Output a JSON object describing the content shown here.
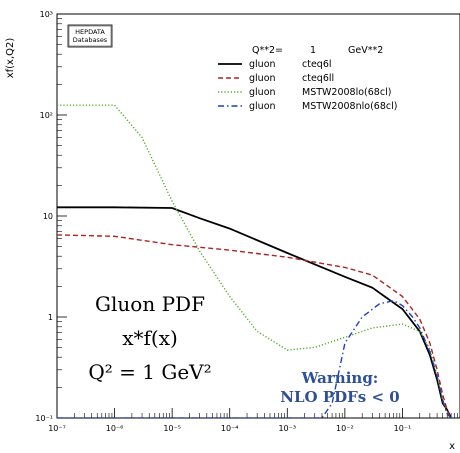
{
  "chart_data": {
    "type": "line",
    "title": "",
    "xlabel": "x",
    "ylabel": "xf(x,Q2)",
    "xscale": "log",
    "yscale": "log",
    "xlim": [
      1e-07,
      1
    ],
    "ylim": [
      0.1,
      1000
    ],
    "x_tick_labels": [
      "10⁻⁷",
      "10⁻⁶",
      "10⁻⁵",
      "10⁻⁴",
      "10⁻³",
      "10⁻²",
      "10⁻¹"
    ],
    "y_tick_labels": [
      "10⁻¹",
      "1",
      "10",
      "10²",
      "10³"
    ],
    "legend_header": {
      "q": "Q**2=",
      "value": "1",
      "unit": "GeV**2"
    },
    "legend_position": "top-right",
    "series": [
      {
        "name": "cteq6l",
        "parton": "gluon",
        "color": "#000000",
        "style": "solid",
        "x": [
          1e-07,
          1e-06,
          1e-05,
          3e-05,
          0.0001,
          0.001,
          0.01,
          0.03,
          0.1,
          0.2,
          0.3,
          0.4,
          0.5,
          0.6,
          0.7
        ],
        "y": [
          12.2,
          12.2,
          12.0,
          9.5,
          7.5,
          4.3,
          2.5,
          1.95,
          1.2,
          0.72,
          0.42,
          0.24,
          0.14,
          0.12,
          0.1
        ]
      },
      {
        "name": "cteq6ll",
        "parton": "gluon",
        "color": "#b22222",
        "style": "dashed",
        "x": [
          1e-07,
          1e-06,
          1e-05,
          0.0001,
          0.001,
          0.01,
          0.03,
          0.1,
          0.2,
          0.3,
          0.4,
          0.5,
          0.6,
          0.68
        ],
        "y": [
          6.5,
          6.3,
          5.2,
          4.6,
          3.9,
          3.1,
          2.6,
          1.6,
          0.95,
          0.55,
          0.3,
          0.17,
          0.12,
          0.1
        ]
      },
      {
        "name": "MSTW2008lo(68cl)",
        "parton": "gluon",
        "color": "#4caf1f",
        "style": "dotted",
        "x": [
          1e-07,
          1e-06,
          3e-06,
          1e-05,
          3e-05,
          0.0001,
          0.0003,
          0.001,
          0.003,
          0.01,
          0.03,
          0.1,
          0.2,
          0.3,
          0.4,
          0.5,
          0.6,
          0.7
        ],
        "y": [
          125,
          125,
          60,
          14,
          4.5,
          1.6,
          0.72,
          0.47,
          0.5,
          0.63,
          0.78,
          0.85,
          0.72,
          0.48,
          0.26,
          0.15,
          0.11,
          0.1
        ]
      },
      {
        "name": "MSTW2008nlo(68cl)",
        "parton": "gluon",
        "color": "#1f3fbf",
        "style": "dashdot",
        "x": [
          1e-07,
          0.002,
          0.004,
          0.006,
          0.008,
          0.01,
          0.02,
          0.04,
          0.07,
          0.1,
          0.15,
          0.2,
          0.3,
          0.4,
          0.5,
          0.6,
          0.7
        ],
        "y": [
          0.1,
          0.1,
          0.1,
          0.14,
          0.3,
          0.55,
          1.0,
          1.35,
          1.45,
          1.3,
          1.0,
          0.78,
          0.45,
          0.26,
          0.15,
          0.11,
          0.1
        ]
      }
    ],
    "annotations": {
      "db_label": [
        "HEPDATA",
        "Databases"
      ],
      "title_lines": [
        "Gluon PDF",
        "x*f(x)",
        "Q² = 1 GeV²"
      ],
      "warning_lines": [
        "Warning:",
        "NLO PDFs < 0"
      ]
    }
  }
}
